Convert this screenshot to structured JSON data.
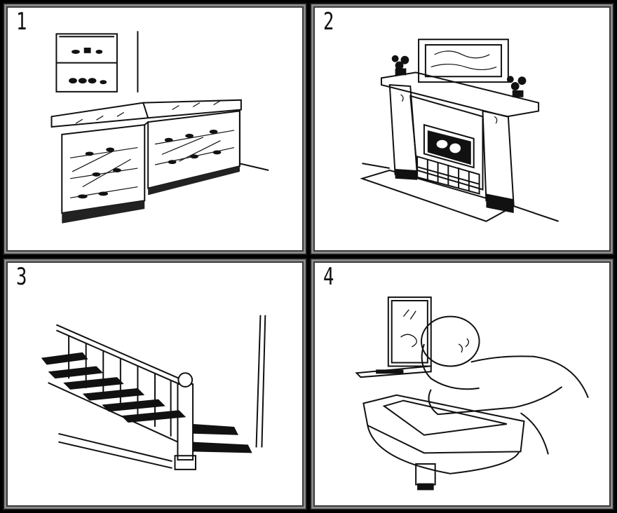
{
  "panels": [
    {
      "number": "1",
      "subject": "display-case"
    },
    {
      "number": "2",
      "subject": "fireplace"
    },
    {
      "number": "3",
      "subject": "staircase"
    },
    {
      "number": "4",
      "subject": "sink"
    }
  ],
  "colors": {
    "background": "#000000",
    "panel": "#ffffff",
    "ink": "#111111",
    "frame": "#8a8a8a"
  }
}
